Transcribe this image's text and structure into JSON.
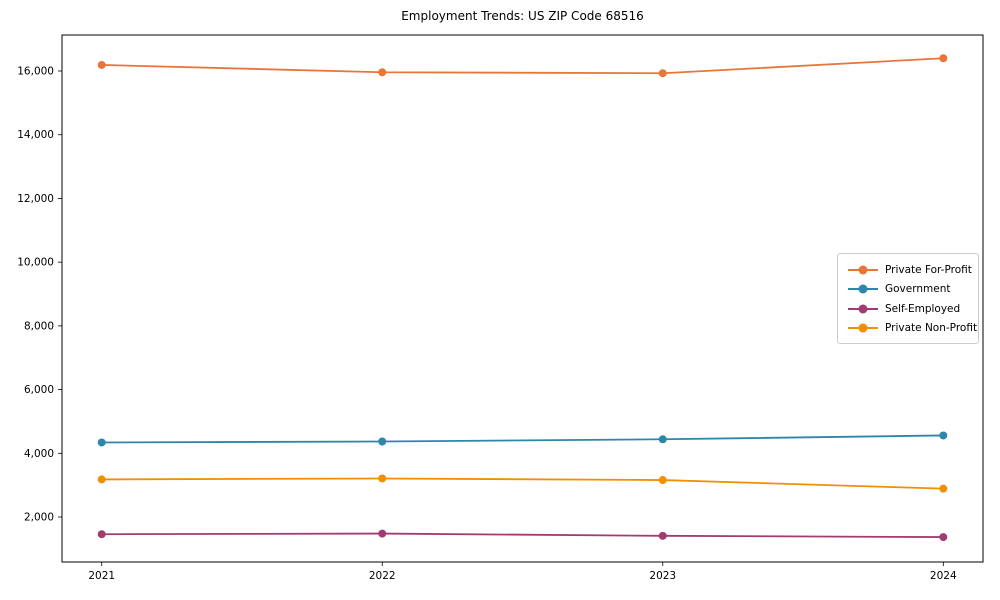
{
  "title": "Employment Trends: US ZIP Code 68516",
  "chart_data": {
    "type": "line",
    "categories": [
      "2021",
      "2022",
      "2023",
      "2024"
    ],
    "series": [
      {
        "name": "Private For-Profit",
        "color": "#E8763B",
        "values": [
          16190,
          15960,
          15930,
          16400
        ]
      },
      {
        "name": "Government",
        "color": "#2E86A8",
        "values": [
          4340,
          4370,
          4440,
          4560
        ]
      },
      {
        "name": "Self-Employed",
        "color": "#A23B72",
        "values": [
          1460,
          1480,
          1410,
          1370
        ]
      },
      {
        "name": "Private Non-Profit",
        "color": "#F18F01",
        "values": [
          3180,
          3210,
          3160,
          2890
        ]
      }
    ],
    "title": "Employment Trends: US ZIP Code 68516",
    "xlabel": "",
    "ylabel": "",
    "ylim": [
      588,
      17130
    ],
    "yticks": [
      2000,
      4000,
      6000,
      8000,
      10000,
      12000,
      14000,
      16000
    ],
    "ytick_labels": [
      "2,000",
      "4,000",
      "6,000",
      "8,000",
      "10,000",
      "12,000",
      "14,000",
      "16,000"
    ],
    "grid": false,
    "legend_position": "center right",
    "marker": "circle",
    "axis_color": "#000000",
    "legend_border_color": "#cccccc"
  }
}
